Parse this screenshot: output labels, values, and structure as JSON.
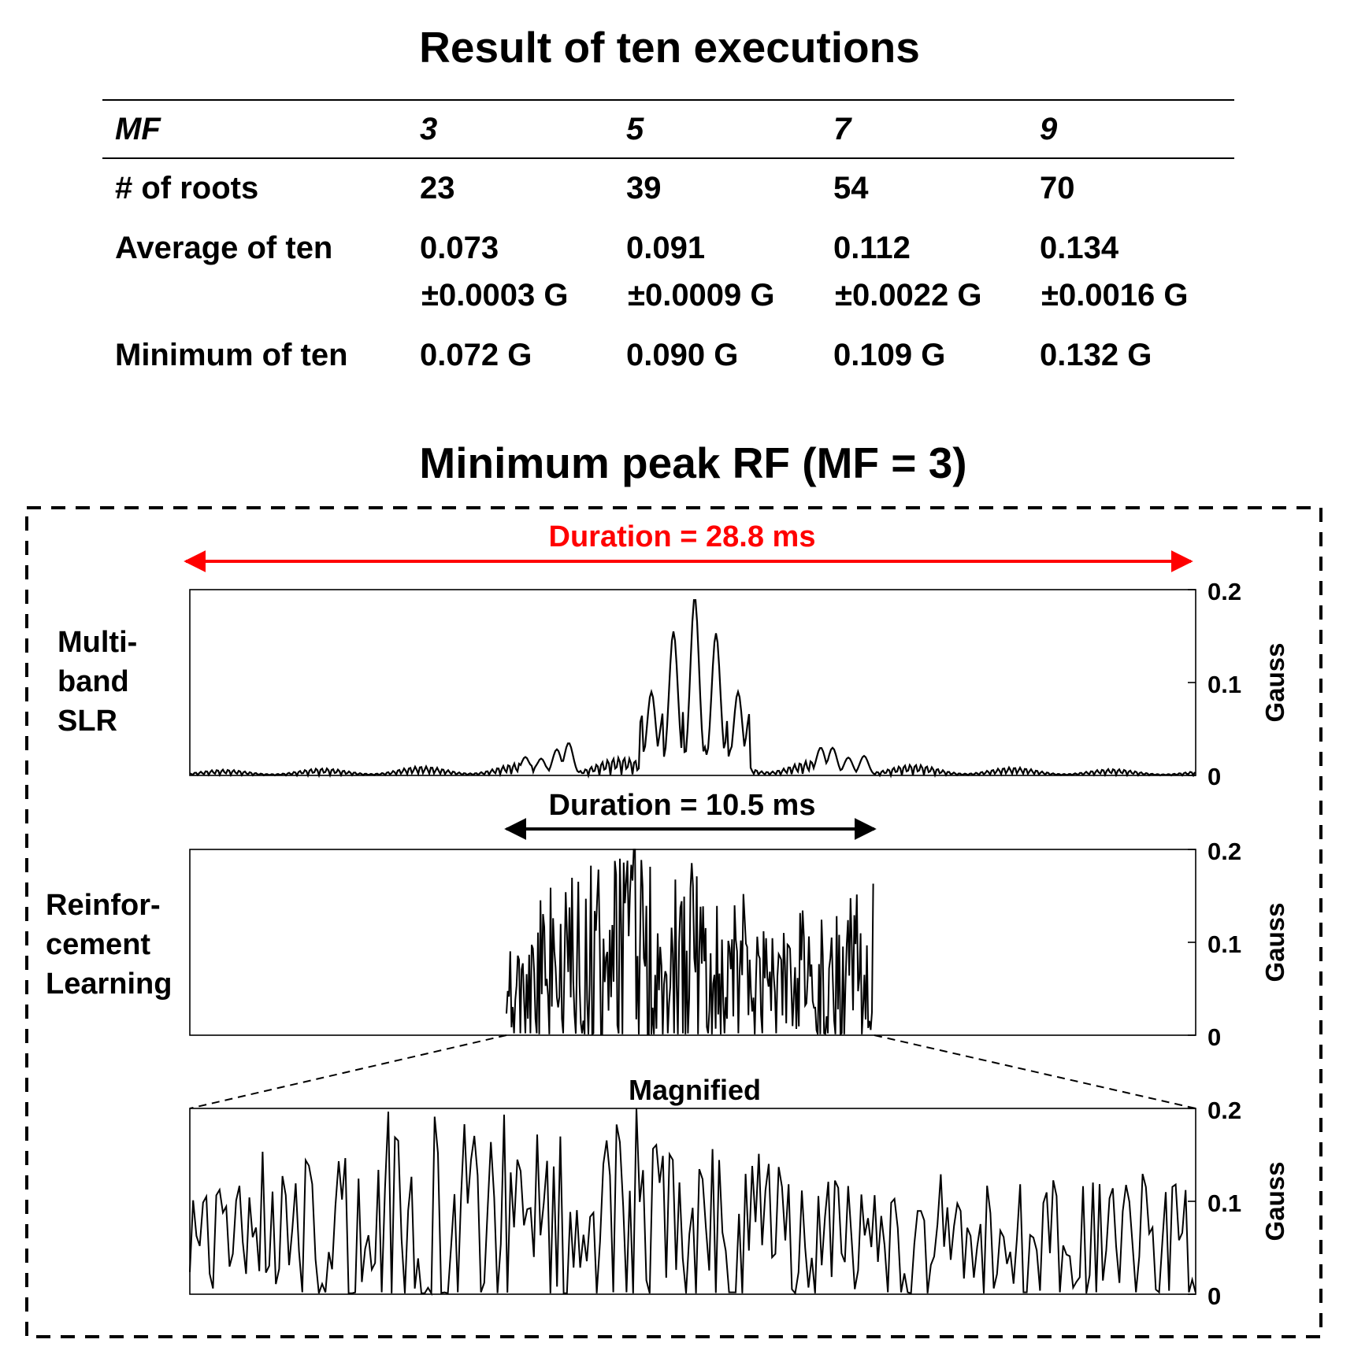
{
  "table": {
    "title": "Result of ten executions",
    "header": {
      "label": "MF",
      "values": [
        "3",
        "5",
        "7",
        "9"
      ]
    },
    "rows": [
      {
        "label": "# of roots",
        "values": [
          "23",
          "39",
          "54",
          "70"
        ]
      },
      {
        "label": "Average of ten",
        "values": [
          "0.073",
          "0.091",
          "0.112",
          "0.134"
        ],
        "errors": [
          "±0.0003 G",
          "±0.0009 G",
          "±0.0022 G",
          "±0.0016 G"
        ]
      },
      {
        "label": "Minimum of ten",
        "values": [
          "0.072 G",
          "0.090 G",
          "0.109 G",
          "0.132 G"
        ]
      }
    ]
  },
  "figure_title": "Minimum peak RF (MF = 3)",
  "chart_data": [
    {
      "type": "line",
      "row_label": [
        "Multi-",
        "band",
        "SLR"
      ],
      "annotation": "Duration = 28.8 ms",
      "annotation_color": "#ff0000",
      "ylabel": "Gauss",
      "ylim": [
        0,
        0.2
      ],
      "yticks": [
        "0",
        "0.1",
        "0.2"
      ],
      "series": [
        {
          "name": "Multi-band SLR",
          "peaks": [
            0.192,
            0.155,
            0.153,
            0.09,
            0.09,
            0.035,
            0.03,
            0.033,
            0.035
          ]
        }
      ]
    },
    {
      "type": "line",
      "row_label": [
        "Reinfor-",
        "cement",
        "Learning"
      ],
      "annotation": "Duration = 10.5 ms",
      "annotation_color": "#000000",
      "ylabel": "Gauss",
      "ylim": [
        0,
        0.2
      ],
      "yticks": [
        "0",
        "0.1",
        "0.2"
      ],
      "series": [
        {
          "name": "Reinforcement Learning",
          "peak": 0.2,
          "mean": 0.075
        }
      ]
    },
    {
      "type": "line",
      "inset_label": "Magnified",
      "ylabel": "Gauss",
      "ylim": [
        0,
        0.2
      ],
      "yticks": [
        "0",
        "0.1",
        "0.2"
      ],
      "series": [
        {
          "name": "Reinforcement Learning (magnified)",
          "peak": 0.2,
          "mean": 0.075
        }
      ]
    }
  ],
  "colors": {
    "red": "#ff0000",
    "black": "#000000"
  }
}
